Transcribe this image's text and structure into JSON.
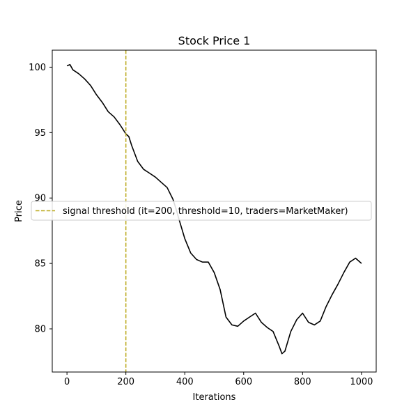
{
  "chart_data": {
    "type": "line",
    "title": "Stock Price 1",
    "xlabel": "Iterations",
    "ylabel": "Price",
    "xlim": [
      -50,
      1050
    ],
    "ylim": [
      76.7,
      101.3
    ],
    "xticks": [
      0,
      200,
      400,
      600,
      800,
      1000
    ],
    "yticks": [
      80,
      85,
      90,
      95,
      100
    ],
    "grid": false,
    "legend": {
      "placement": "center-left",
      "entries": [
        "signal threshold (it=200, threshold=10, traders=MarketMaker)"
      ]
    },
    "vline": {
      "x": 200,
      "label": "signal threshold (it=200, threshold=10, traders=MarketMaker)",
      "color": "#bcaa1f",
      "style": "dashed"
    },
    "series": [
      {
        "color": "#000000",
        "x": [
          0,
          10,
          20,
          40,
          60,
          80,
          100,
          120,
          140,
          160,
          180,
          200,
          210,
          220,
          240,
          260,
          280,
          300,
          320,
          340,
          360,
          370,
          380,
          400,
          420,
          440,
          460,
          480,
          500,
          520,
          540,
          560,
          580,
          600,
          620,
          640,
          660,
          680,
          700,
          720,
          730,
          740,
          760,
          780,
          800,
          820,
          840,
          860,
          880,
          900,
          920,
          940,
          960,
          980,
          1000
        ],
        "y": [
          100.1,
          100.2,
          99.8,
          99.5,
          99.1,
          98.6,
          97.9,
          97.3,
          96.6,
          96.2,
          95.6,
          94.9,
          94.7,
          94.0,
          92.8,
          92.2,
          91.9,
          91.6,
          91.2,
          90.8,
          89.9,
          89.2,
          88.4,
          86.9,
          85.8,
          85.3,
          85.1,
          85.1,
          84.3,
          83.0,
          80.9,
          80.3,
          80.2,
          80.6,
          80.9,
          81.2,
          80.5,
          80.1,
          79.8,
          78.7,
          78.1,
          78.3,
          79.8,
          80.7,
          81.2,
          80.5,
          80.3,
          80.6,
          81.7,
          82.6,
          83.4,
          84.3,
          85.1,
          85.4,
          85.0
        ]
      }
    ]
  }
}
